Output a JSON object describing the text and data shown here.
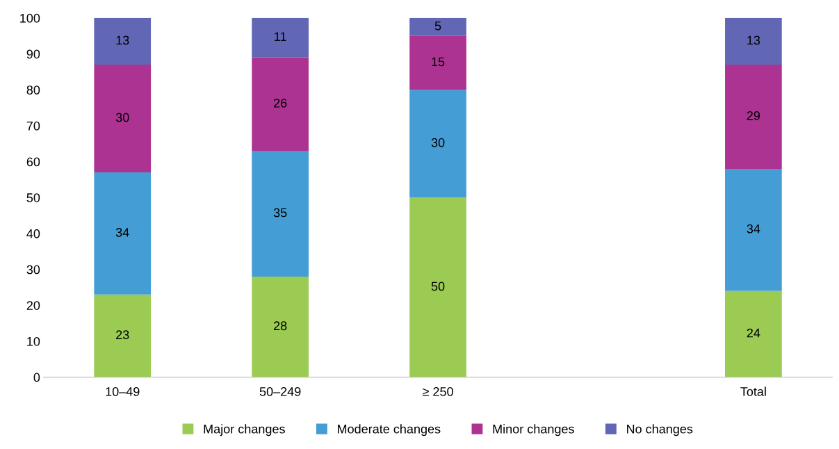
{
  "chart_data": {
    "type": "bar",
    "stacked": true,
    "categories": [
      "10–49",
      "50–249",
      "≥ 250",
      null,
      "Total"
    ],
    "series": [
      {
        "name": "Major changes",
        "color": "#9bcb52",
        "values": [
          23,
          28,
          50,
          null,
          24
        ]
      },
      {
        "name": "Moderate changes",
        "color": "#449dd5",
        "values": [
          34,
          35,
          30,
          null,
          34
        ]
      },
      {
        "name": "Minor changes",
        "color": "#ad3393",
        "values": [
          30,
          26,
          15,
          null,
          29
        ]
      },
      {
        "name": "No changes",
        "color": "#6167b5",
        "values": [
          13,
          11,
          5,
          null,
          13
        ]
      }
    ],
    "ylim": [
      0,
      100
    ],
    "yticks": [
      0,
      10,
      20,
      30,
      40,
      50,
      60,
      70,
      80,
      90,
      100
    ],
    "data_labels": true,
    "grid": false,
    "legend": "bottom"
  }
}
